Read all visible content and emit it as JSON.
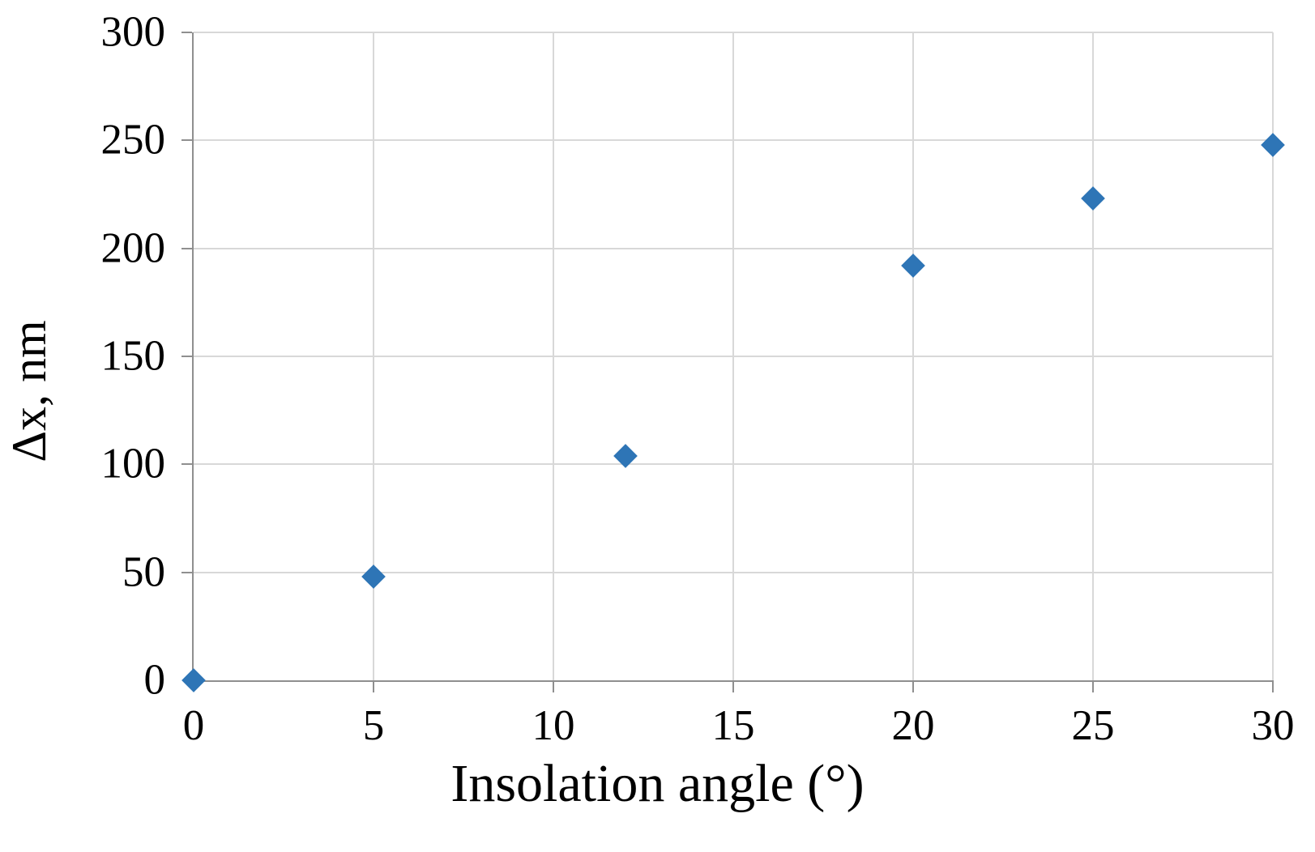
{
  "chart_data": {
    "type": "scatter",
    "title": "",
    "xlabel": "Insolation angle (°)",
    "ylabel": "Δx, nm",
    "xlim": [
      0,
      30
    ],
    "ylim": [
      0,
      300
    ],
    "x_ticks": [
      0,
      5,
      10,
      15,
      20,
      25,
      30
    ],
    "y_ticks": [
      0,
      50,
      100,
      150,
      200,
      250,
      300
    ],
    "grid": true,
    "legend": "none",
    "series": [
      {
        "name": "Δx",
        "marker": "diamond",
        "color": "#2E75B6",
        "points": [
          {
            "x": 0,
            "y": 0
          },
          {
            "x": 5,
            "y": 48
          },
          {
            "x": 12,
            "y": 104
          },
          {
            "x": 20,
            "y": 192
          },
          {
            "x": 25,
            "y": 223
          },
          {
            "x": 30,
            "y": 248
          }
        ]
      }
    ],
    "colors": {
      "marker": "#2E75B6",
      "gridline": "#D8D8D8",
      "axis": "#8F8F8F",
      "text": "#000000",
      "background": "#FFFFFF"
    }
  }
}
